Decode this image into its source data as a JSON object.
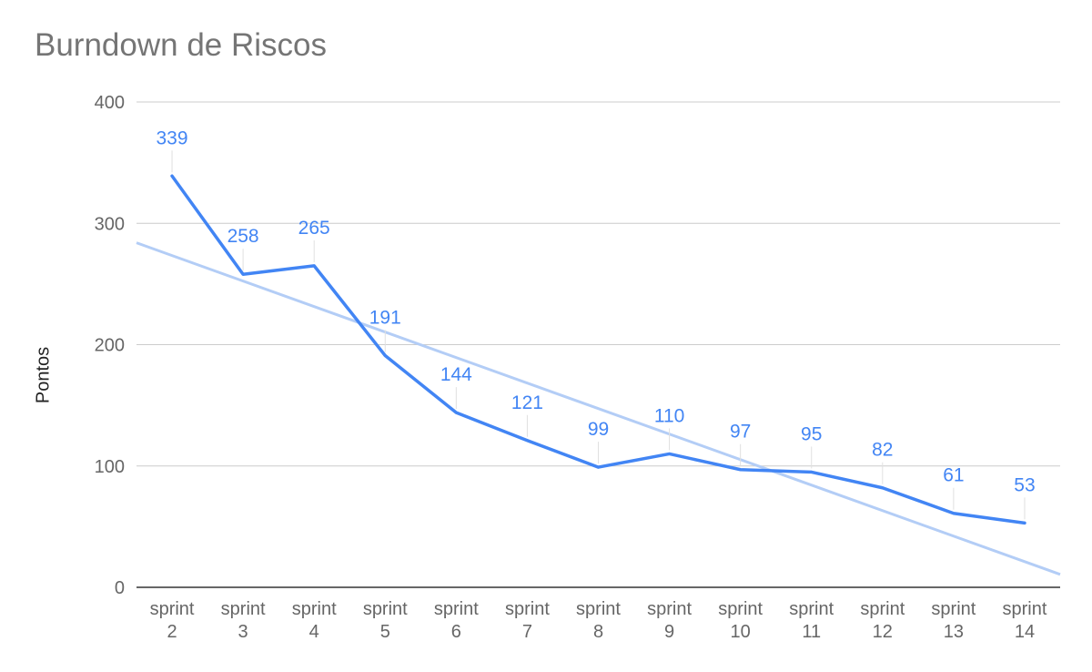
{
  "chart_data": {
    "type": "line",
    "title": "Burndown de Riscos",
    "xlabel": "",
    "ylabel": "Pontos",
    "categories": [
      [
        "sprint",
        "2"
      ],
      [
        "sprint",
        "3"
      ],
      [
        "sprint",
        "4"
      ],
      [
        "sprint",
        "5"
      ],
      [
        "sprint",
        "6"
      ],
      [
        "sprint",
        "7"
      ],
      [
        "sprint",
        "8"
      ],
      [
        "sprint",
        "9"
      ],
      [
        "sprint",
        "10"
      ],
      [
        "sprint",
        "11"
      ],
      [
        "sprint",
        "12"
      ],
      [
        "sprint",
        "13"
      ],
      [
        "sprint",
        "14"
      ]
    ],
    "series": [
      {
        "values": [
          339,
          258,
          265,
          191,
          144,
          121,
          99,
          110,
          97,
          95,
          82,
          61,
          53
        ],
        "color": "#4285f4",
        "data_labels": true
      }
    ],
    "trendline": {
      "type": "linear",
      "color": "#b3cdf6"
    },
    "ylim": [
      0,
      400
    ],
    "yticks": [
      0,
      100,
      200,
      300,
      400
    ],
    "grid": true,
    "legend": "none"
  }
}
